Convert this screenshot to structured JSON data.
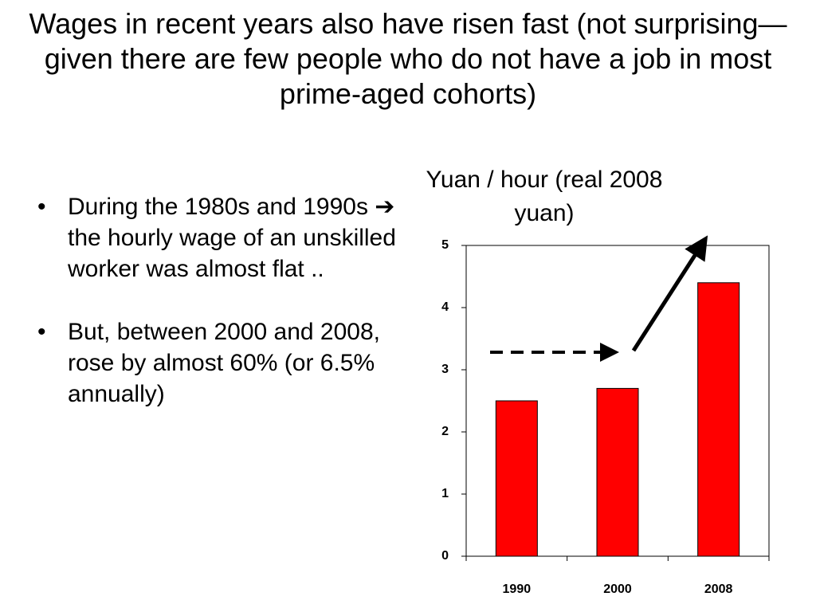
{
  "slide": {
    "title": "Wages in recent years also have risen fast (not surprising—given there are few people who do not have a job in most prime-aged cohorts)",
    "bullets": [
      "During the 1980s and 1990s ➔ the hourly wage of an unskilled worker was almost flat ..",
      "But, between 2000 and 2008, rose by almost 60% (or 6.5% annually)"
    ]
  },
  "chart_data": {
    "type": "bar",
    "y_label": "Yuan / hour (real 2008 yuan)",
    "categories": [
      "1990",
      "2000",
      "2008"
    ],
    "values": [
      2.5,
      2.7,
      4.4
    ],
    "color": "#ff0000",
    "ylim": [
      0,
      5
    ],
    "yticks": [
      0,
      1,
      2,
      3,
      4,
      5
    ],
    "grid": false
  }
}
